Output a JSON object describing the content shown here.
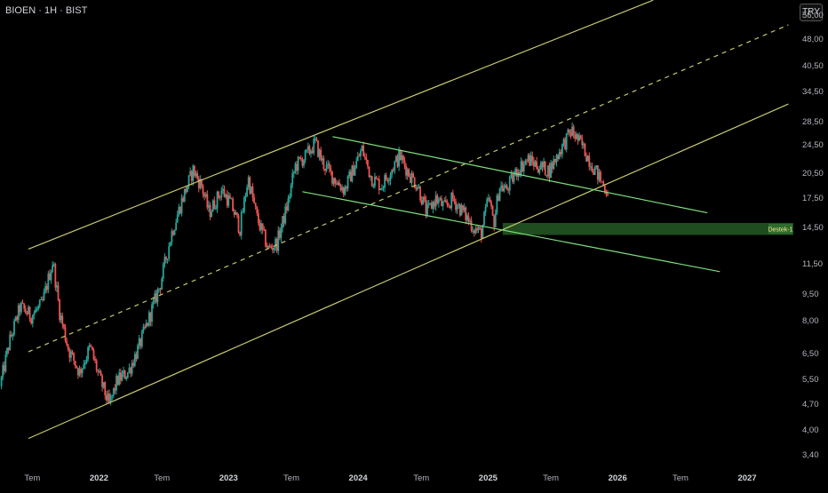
{
  "header": {
    "symbol": "BIOEN · 1H · BIST",
    "currency": "TRY"
  },
  "colors": {
    "background": "#000000",
    "up_candle": "#26a69a",
    "down_candle": "#ef5350",
    "outer_channel": "#c8c86e",
    "inner_channel": "#7ee07e",
    "support_zone": "#1f4d1f",
    "support_label_bg": "#2f6a2f",
    "support_label_text": "#f0e68c"
  },
  "chart_data": {
    "type": "candlestick",
    "symbol": "BIOEN",
    "currency": "TRY",
    "scale": "log",
    "ylim": [
      3.2,
      60
    ],
    "xlim": [
      "2021-04-01",
      "2027-05-15"
    ],
    "y_ticks": [
      "56,00",
      "48,00",
      "40,50",
      "34,50",
      "28,50",
      "24,50",
      "20,50",
      "17,50",
      "14,50",
      "11,50",
      "9,50",
      "8,00",
      "6,50",
      "5,50",
      "4,70",
      "4,00",
      "3,40"
    ],
    "x_ticks": [
      {
        "label": "Tem",
        "year": false
      },
      {
        "label": "2022",
        "year": true
      },
      {
        "label": "Tem",
        "year": false
      },
      {
        "label": "2023",
        "year": true
      },
      {
        "label": "Tem",
        "year": false
      },
      {
        "label": "2024",
        "year": true
      },
      {
        "label": "Tem",
        "year": false
      },
      {
        "label": "2025",
        "year": true
      },
      {
        "label": "Tem",
        "year": false
      },
      {
        "label": "2026",
        "year": true
      },
      {
        "label": "Tem",
        "year": false
      },
      {
        "label": "2027",
        "year": true
      }
    ],
    "price_path": [
      [
        "2021-04-05",
        5.3
      ],
      [
        "2021-05-01",
        7.0
      ],
      [
        "2021-06-01",
        8.8
      ],
      [
        "2021-07-01",
        8.3
      ],
      [
        "2021-08-01",
        8.9
      ],
      [
        "2021-09-01",
        11.8
      ],
      [
        "2021-09-20",
        8.5
      ],
      [
        "2021-10-15",
        6.7
      ],
      [
        "2021-11-15",
        5.8
      ],
      [
        "2021-12-15",
        6.8
      ],
      [
        "2022-01-10",
        5.6
      ],
      [
        "2022-02-07",
        4.7
      ],
      [
        "2022-03-01",
        5.5
      ],
      [
        "2022-04-01",
        5.8
      ],
      [
        "2022-05-01",
        6.8
      ],
      [
        "2022-06-01",
        8.3
      ],
      [
        "2022-07-01",
        10.2
      ],
      [
        "2022-08-01",
        14.0
      ],
      [
        "2022-09-01",
        17.5
      ],
      [
        "2022-10-01",
        21.0
      ],
      [
        "2022-10-25",
        19.0
      ],
      [
        "2022-11-15",
        16.0
      ],
      [
        "2022-12-20",
        18.5
      ],
      [
        "2023-01-15",
        17.0
      ],
      [
        "2023-02-10",
        14.5
      ],
      [
        "2023-03-05",
        20.0
      ],
      [
        "2023-03-30",
        15.5
      ],
      [
        "2023-05-01",
        12.7
      ],
      [
        "2023-05-25",
        13.2
      ],
      [
        "2023-06-25",
        17.0
      ],
      [
        "2023-07-15",
        21.5
      ],
      [
        "2023-08-15",
        23.0
      ],
      [
        "2023-09-10",
        25.0
      ],
      [
        "2023-10-01",
        22.0
      ],
      [
        "2023-11-01",
        20.0
      ],
      [
        "2023-12-01",
        18.5
      ],
      [
        "2023-12-25",
        21.0
      ],
      [
        "2024-01-20",
        24.0
      ],
      [
        "2024-02-15",
        20.0
      ],
      [
        "2024-03-15",
        19.0
      ],
      [
        "2024-04-10",
        21.0
      ],
      [
        "2024-05-05",
        23.0
      ],
      [
        "2024-06-01",
        20.5
      ],
      [
        "2024-06-25",
        19.0
      ],
      [
        "2024-07-20",
        16.0
      ],
      [
        "2024-08-15",
        17.5
      ],
      [
        "2024-09-10",
        16.5
      ],
      [
        "2024-10-01",
        17.5
      ],
      [
        "2024-11-01",
        16.0
      ],
      [
        "2024-12-01",
        14.5
      ],
      [
        "2024-12-20",
        14.0
      ],
      [
        "2025-01-10",
        17.5
      ],
      [
        "2025-01-25",
        15.0
      ],
      [
        "2025-02-10",
        19.0
      ],
      [
        "2025-03-01",
        18.5
      ],
      [
        "2025-04-01",
        21.0
      ],
      [
        "2025-05-01",
        22.5
      ],
      [
        "2025-06-01",
        21.5
      ],
      [
        "2025-07-01",
        21.0
      ],
      [
        "2025-08-01",
        24.0
      ],
      [
        "2025-09-01",
        27.0
      ],
      [
        "2025-10-01",
        24.5
      ],
      [
        "2025-11-01",
        21.5
      ],
      [
        "2025-12-01",
        19.0
      ],
      [
        "2025-12-10",
        18.5
      ]
    ],
    "trend_lines": [
      {
        "name": "outer-upper",
        "color": "#c8c86e",
        "style": "solid",
        "from": [
          "2021-06-20",
          12.7
        ],
        "to": [
          "2026-04-15",
          62.0
        ]
      },
      {
        "name": "outer-mid",
        "color": "#c8c86e",
        "style": "dashed",
        "from": [
          "2021-06-20",
          6.6
        ],
        "to": [
          "2027-05-01",
          53.0
        ]
      },
      {
        "name": "outer-lower",
        "color": "#c8c86e",
        "style": "solid",
        "from": [
          "2021-06-20",
          3.8
        ],
        "to": [
          "2027-05-01",
          32.0
        ]
      },
      {
        "name": "inner-upper",
        "color": "#7ee07e",
        "style": "solid",
        "from": [
          "2023-10-25",
          26.0
        ],
        "to": [
          "2026-09-15",
          16.0
        ]
      },
      {
        "name": "inner-lower",
        "color": "#7ee07e",
        "style": "solid",
        "from": [
          "2023-08-01",
          18.3
        ],
        "to": [
          "2026-10-20",
          11.0
        ]
      }
    ],
    "support_zone": {
      "label": "Destek-1",
      "start": "2025-02-15",
      "y_low": 13.9,
      "y_high": 15.0
    }
  }
}
